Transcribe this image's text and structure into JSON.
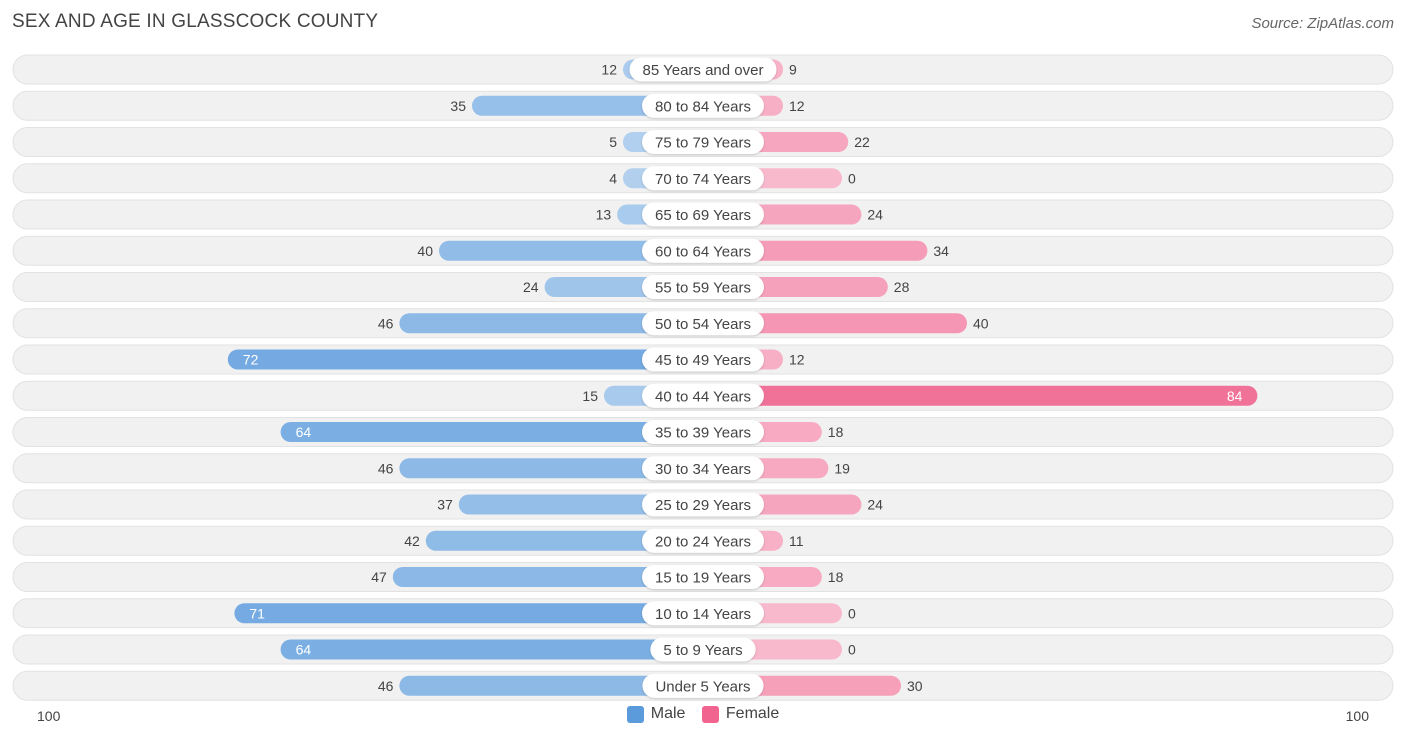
{
  "title": "SEX AND AGE IN GLASSCOCK COUNTY",
  "source": "Source: ZipAtlas.com",
  "legend": {
    "male_label": "Male",
    "female_label": "Female"
  },
  "colors": {
    "male": "#5b9bdc",
    "female": "#f0648f",
    "row_bg": "#f1f1f1"
  },
  "chart_data": {
    "type": "bar",
    "orientation": "horizontal-diverging",
    "title": "SEX AND AGE IN GLASSCOCK COUNTY",
    "axis": {
      "min_label": "100",
      "max_label": "100",
      "max": 100
    },
    "categories": [
      "85 Years and over",
      "80 to 84 Years",
      "75 to 79 Years",
      "70 to 74 Years",
      "65 to 69 Years",
      "60 to 64 Years",
      "55 to 59 Years",
      "50 to 54 Years",
      "45 to 49 Years",
      "40 to 44 Years",
      "35 to 39 Years",
      "30 to 34 Years",
      "25 to 29 Years",
      "20 to 24 Years",
      "15 to 19 Years",
      "10 to 14 Years",
      "5 to 9 Years",
      "Under 5 Years"
    ],
    "series": [
      {
        "name": "Male",
        "values": [
          12,
          35,
          5,
          4,
          13,
          40,
          24,
          46,
          72,
          15,
          64,
          46,
          37,
          42,
          47,
          71,
          64,
          46
        ]
      },
      {
        "name": "Female",
        "values": [
          9,
          12,
          22,
          0,
          24,
          34,
          28,
          40,
          12,
          84,
          18,
          19,
          24,
          11,
          18,
          0,
          0,
          30
        ]
      }
    ]
  }
}
